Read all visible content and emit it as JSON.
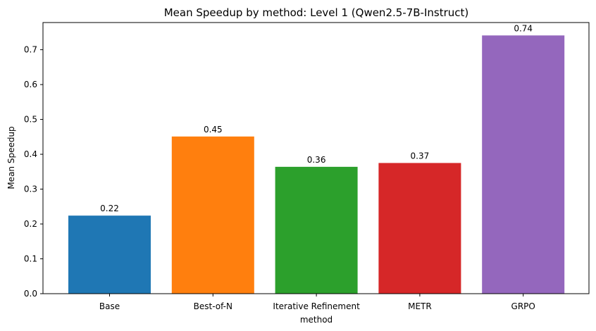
{
  "chart_data": {
    "type": "bar",
    "title": "Mean Speedup by method: Level 1 (Qwen2.5-7B-Instruct)",
    "xlabel": "method",
    "ylabel": "Mean Speedup",
    "categories": [
      "Base",
      "Best-of-N",
      "Iterative Refinement",
      "METR",
      "GRPO"
    ],
    "values": [
      0.224,
      0.451,
      0.364,
      0.375,
      0.741
    ],
    "value_labels": [
      "0.22",
      "0.45",
      "0.36",
      "0.37",
      "0.74"
    ],
    "colors": [
      "#1f77b4",
      "#ff7f0e",
      "#2ca02c",
      "#d62728",
      "#9467bd"
    ],
    "ylim": [
      0,
      0.778
    ],
    "yticks": [
      0.0,
      0.1,
      0.2,
      0.3,
      0.4,
      0.5,
      0.6,
      0.7
    ],
    "ytick_labels": [
      "0.0",
      "0.1",
      "0.2",
      "0.3",
      "0.4",
      "0.5",
      "0.6",
      "0.7"
    ],
    "grid": false,
    "legend": "none"
  }
}
